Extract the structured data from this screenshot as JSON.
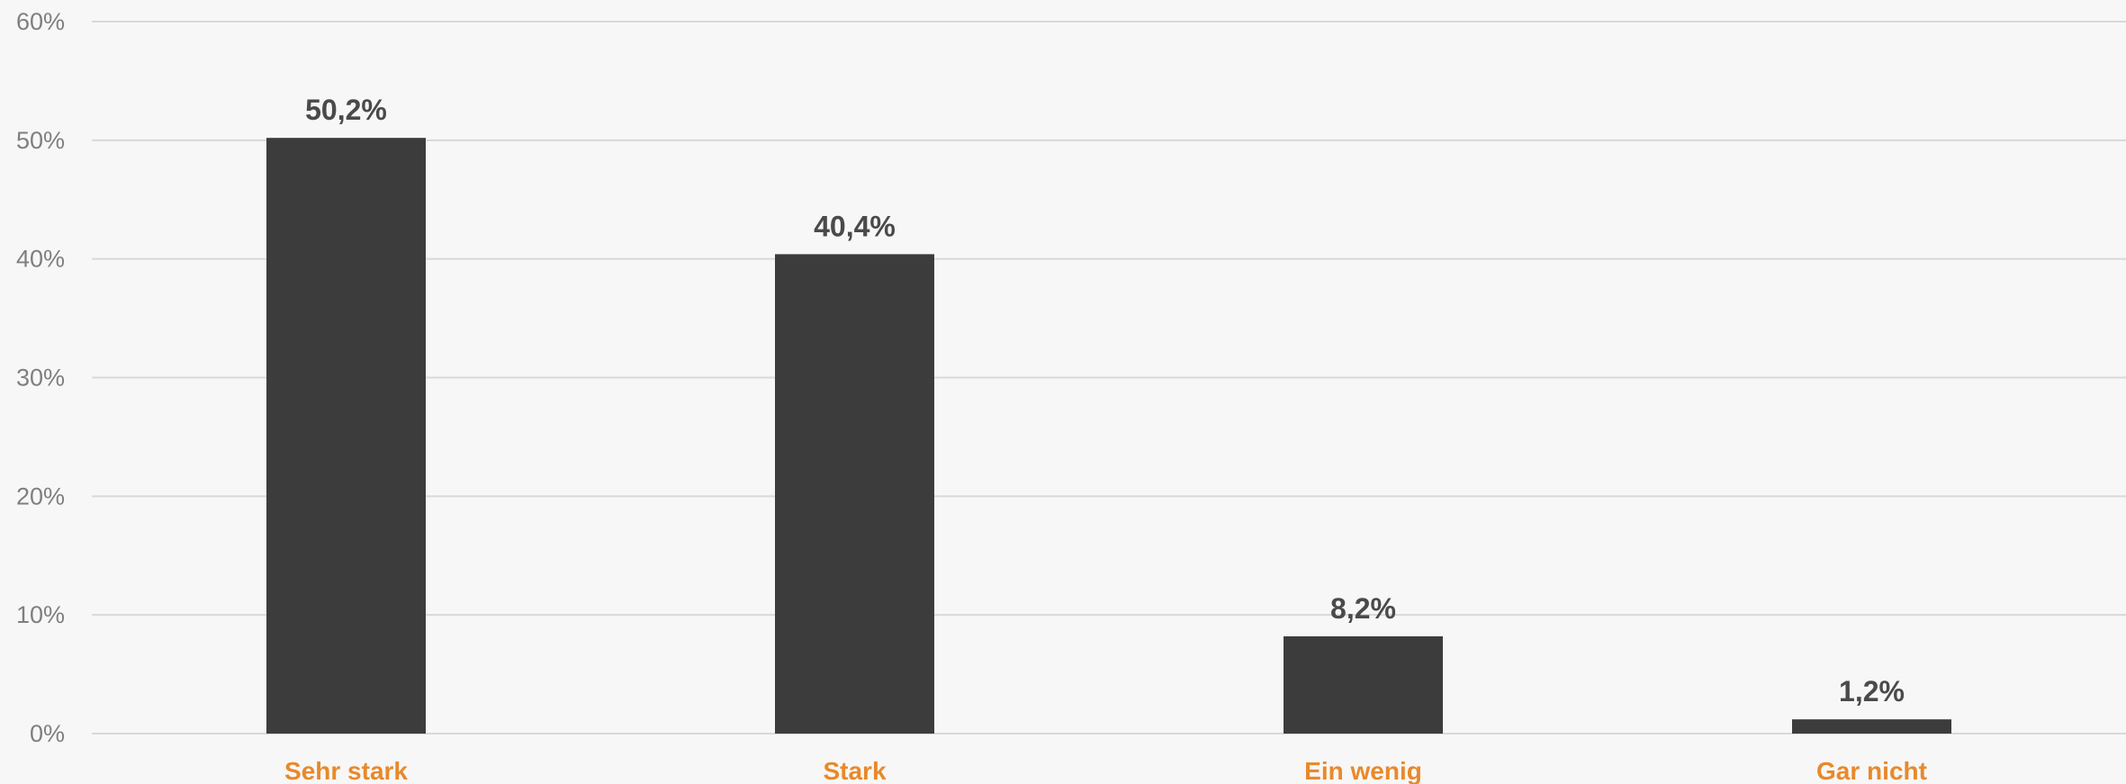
{
  "chart_data": {
    "type": "bar",
    "title": "",
    "xlabel": "",
    "ylabel": "",
    "categories": [
      "Sehr stark",
      "Stark",
      "Ein wenig",
      "Gar nicht"
    ],
    "values": [
      50.2,
      40.4,
      8.2,
      1.2
    ],
    "data_labels": [
      "50,2%",
      "40,4%",
      "8,2%",
      "1,2%"
    ],
    "ylim": [
      0,
      60
    ],
    "y_ticks": [
      0,
      10,
      20,
      30,
      40,
      50,
      60
    ],
    "y_tick_labels": [
      "0%",
      "10%",
      "20%",
      "30%",
      "40%",
      "50%",
      "60%"
    ],
    "grid": true,
    "legend": "none",
    "colors": {
      "bar": "#3c3c3c",
      "category_label": "#e8892b",
      "data_label": "#4a4a4a",
      "tick_label": "#7f7f7f",
      "gridline": "#d9d9d9",
      "background": "#f7f7f7"
    }
  }
}
